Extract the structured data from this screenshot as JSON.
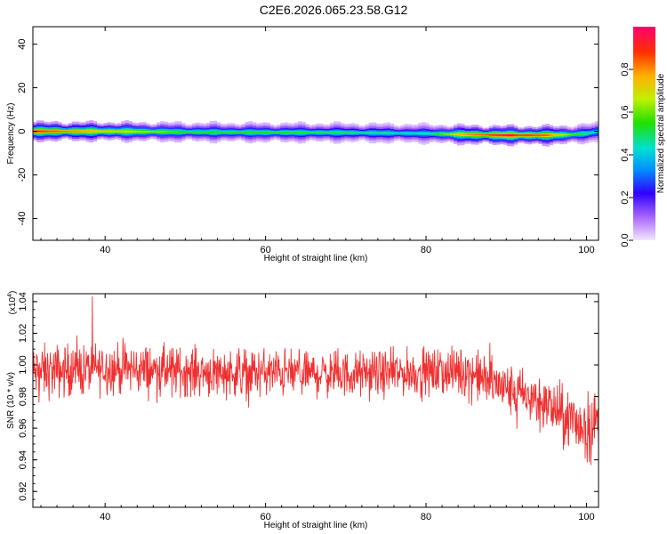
{
  "title": "C2E6.2026.065.23.58.G12",
  "chart_data": [
    {
      "type": "heatmap",
      "xlabel": "Height of straight line (km)",
      "ylabel": "Frequency (Hz)",
      "xlim": [
        31,
        101.5
      ],
      "ylim": [
        -50,
        48
      ],
      "xticks": [
        "40",
        "60",
        "80",
        "100"
      ],
      "yticks": [
        "-40",
        "-20",
        "0",
        "20",
        "40"
      ],
      "colorbar": {
        "label": "Normalized spectral amplitude",
        "range": [
          0,
          1
        ],
        "ticks": [
          "0.0",
          "0.2",
          "0.4",
          "0.6",
          "0.8"
        ],
        "colors": [
          "#f2e6ff",
          "#b070ff",
          "#3000ff",
          "#0090ff",
          "#00e0d0",
          "#20e000",
          "#c0f000",
          "#ffb000",
          "#ff3000",
          "#ff0070"
        ]
      },
      "ridge": {
        "description_free_values": true,
        "x": [
          31,
          40,
          50,
          60,
          70,
          80,
          85,
          90,
          95,
          98,
          100,
          101.5
        ],
        "center_hz": [
          0,
          0,
          -0.3,
          -0.5,
          -0.6,
          -1,
          -1.5,
          -1.8,
          -1.8,
          -1.5,
          -1,
          0
        ],
        "peak_amplitude": [
          0.9,
          0.75,
          0.55,
          0.55,
          0.5,
          0.45,
          0.8,
          0.95,
          0.85,
          0.6,
          0.5,
          0.4
        ]
      }
    },
    {
      "type": "line",
      "xlabel": "Height of straight line (km)",
      "ylabel": "SNR (10 * v/v)",
      "yscale_label": "(x10",
      "yscale_exp": "4",
      "yscale_close": ")",
      "xlim": [
        31,
        101.5
      ],
      "ylim": [
        0.91,
        1.045
      ],
      "xticks": [
        "40",
        "60",
        "80",
        "100"
      ],
      "yticks": [
        "0.92",
        "0.94",
        "0.96",
        "0.98",
        "1.00",
        "1.02",
        "1.04"
      ],
      "color": "#f03030",
      "series": [
        {
          "x": [
            31,
            40,
            50,
            60,
            70,
            80,
            85,
            90,
            95,
            98,
            100,
            101.5
          ],
          "mean": [
            0.995,
            0.998,
            0.996,
            0.995,
            0.994,
            0.995,
            0.996,
            0.985,
            0.975,
            0.965,
            0.96,
            0.965
          ],
          "spread": [
            0.018,
            0.017,
            0.016,
            0.016,
            0.015,
            0.015,
            0.017,
            0.017,
            0.018,
            0.02,
            0.025,
            0.02
          ]
        }
      ]
    }
  ]
}
